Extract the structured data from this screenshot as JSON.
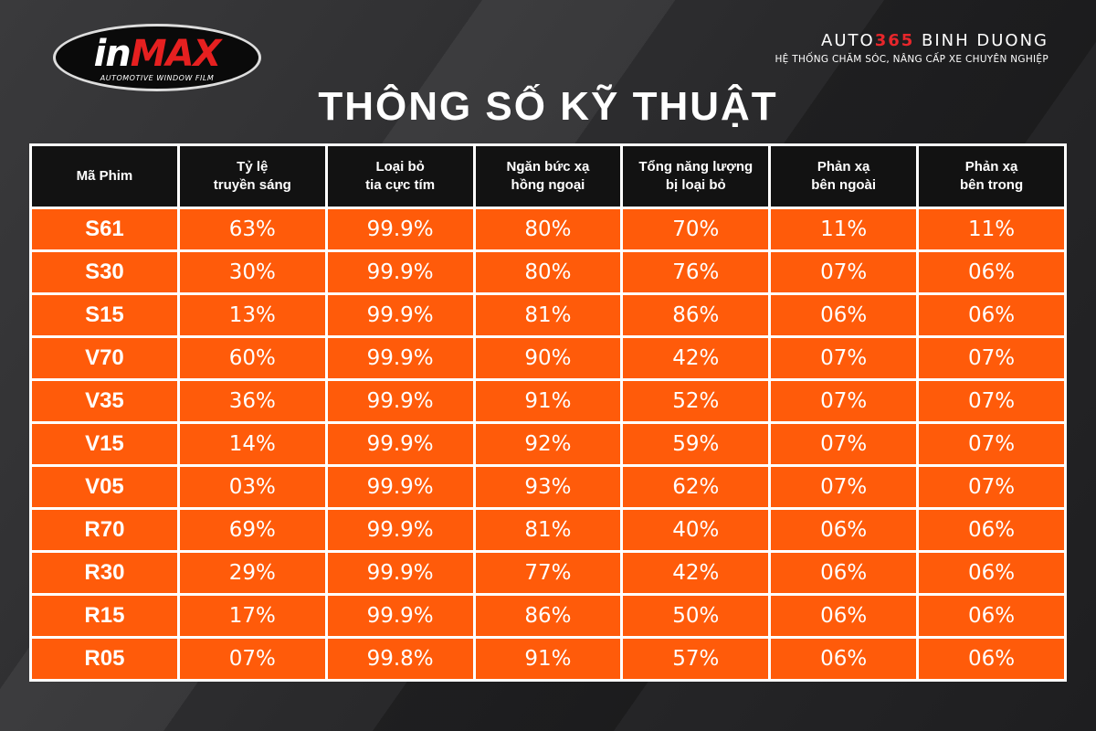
{
  "logo": {
    "name_part1": "in",
    "name_part2": "MAX",
    "subtitle": "AUTOMOTIVE WINDOW FILM"
  },
  "brand": {
    "part1": "AUTO",
    "part2": "365",
    "part3": "BINH DUONG",
    "tagline": "HỆ THỐNG CHĂM SÓC, NÂNG CẤP XE CHUYÊN NGHIỆP"
  },
  "title": "THÔNG SỐ KỸ THUẬT",
  "table": {
    "headers": [
      "Mã Phim",
      "Tỷ lệ\ntruyền sáng",
      "Loại bỏ\ntia cực tím",
      "Ngăn bức xạ\nhồng ngoại",
      "Tổng năng lượng\nbị loại bỏ",
      "Phản xạ\nbên ngoài",
      "Phản xạ\nbên trong"
    ],
    "rows": [
      [
        "S61",
        "63%",
        "99.9%",
        "80%",
        "70%",
        "11%",
        "11%"
      ],
      [
        "S30",
        "30%",
        "99.9%",
        "80%",
        "76%",
        "07%",
        "06%"
      ],
      [
        "S15",
        "13%",
        "99.9%",
        "81%",
        "86%",
        "06%",
        "06%"
      ],
      [
        "V70",
        "60%",
        "99.9%",
        "90%",
        "42%",
        "07%",
        "07%"
      ],
      [
        "V35",
        "36%",
        "99.9%",
        "91%",
        "52%",
        "07%",
        "07%"
      ],
      [
        "V15",
        "14%",
        "99.9%",
        "92%",
        "59%",
        "07%",
        "07%"
      ],
      [
        "V05",
        "03%",
        "99.9%",
        "93%",
        "62%",
        "07%",
        "07%"
      ],
      [
        "R70",
        "69%",
        "99.9%",
        "81%",
        "40%",
        "06%",
        "06%"
      ],
      [
        "R30",
        "29%",
        "99.9%",
        "77%",
        "42%",
        "06%",
        "06%"
      ],
      [
        "R15",
        "17%",
        "99.9%",
        "86%",
        "50%",
        "06%",
        "06%"
      ],
      [
        "R05",
        "07%",
        "99.8%",
        "91%",
        "57%",
        "06%",
        "06%"
      ]
    ]
  }
}
